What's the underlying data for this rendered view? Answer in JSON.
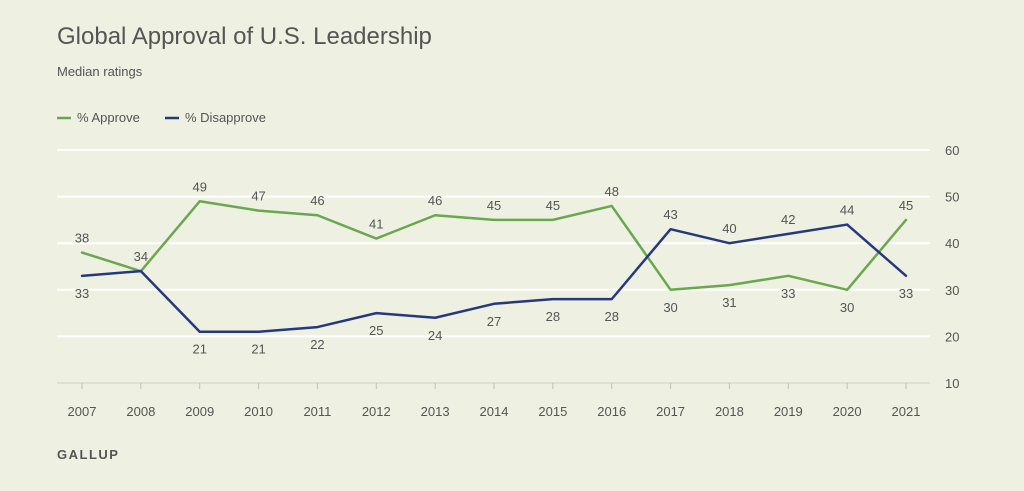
{
  "header": {
    "title": "Global Approval of U.S. Leadership",
    "subtitle": "Median ratings"
  },
  "footer": {
    "brand": "GALLUP"
  },
  "colors": {
    "background": "#eef0e2",
    "approve": "#6aa84f",
    "disapprove": "#26397e",
    "grid": "#ffffff",
    "text": "#555555",
    "title": "#555555"
  },
  "chart_data": {
    "type": "line",
    "title": "Global Approval of U.S. Leadership",
    "subtitle": "Median ratings",
    "categories": [
      "2007",
      "2008",
      "2009",
      "2010",
      "2011",
      "2012",
      "2013",
      "2014",
      "2015",
      "2016",
      "2017",
      "2018",
      "2019",
      "2020",
      "2021"
    ],
    "series": [
      {
        "name": "% Approve",
        "color": "#6aa84f",
        "values": [
          38,
          34,
          49,
          47,
          46,
          41,
          46,
          45,
          45,
          48,
          30,
          31,
          33,
          30,
          45
        ]
      },
      {
        "name": "% Disapprove",
        "color": "#26397e",
        "values": [
          33,
          34,
          21,
          21,
          22,
          25,
          24,
          27,
          28,
          28,
          43,
          40,
          42,
          44,
          33
        ]
      }
    ],
    "data_labels": [
      [
        "38",
        "34",
        "49",
        "47",
        "46",
        "41",
        "46",
        "45",
        "45",
        "48",
        "30",
        "31",
        "33",
        "30",
        "45"
      ],
      [
        "33",
        "",
        "21",
        "21",
        "22",
        "25",
        "24",
        "27",
        "28",
        "28",
        "43",
        "40",
        "42",
        "44",
        "33"
      ]
    ],
    "ylim": [
      10,
      60
    ],
    "yticks": [
      10,
      20,
      30,
      40,
      50,
      60
    ],
    "y_axis_side": "right",
    "legend_position": "top-left",
    "grid": true
  }
}
